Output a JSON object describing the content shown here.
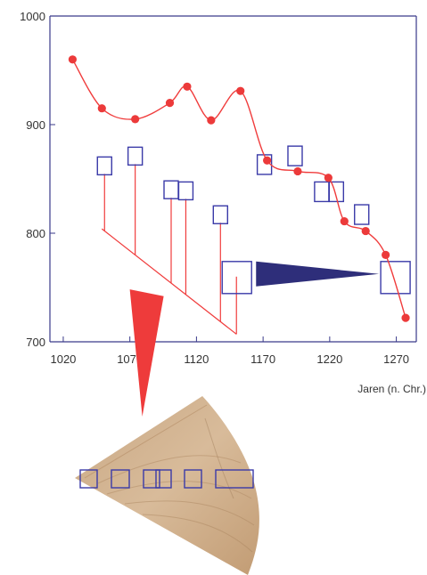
{
  "chart_data": {
    "type": "line",
    "title": "",
    "xlabel": "Jaren (n. Chr.)",
    "ylabel": "",
    "xlim": [
      1010,
      1285
    ],
    "ylim": [
      700,
      1000
    ],
    "xticks": [
      1020,
      1070,
      1120,
      1170,
      1220,
      1270
    ],
    "yticks": [
      700,
      800,
      900,
      1000
    ],
    "grid": false,
    "colors": {
      "series": "#f03c3c",
      "marker": "#ec3a3a",
      "box": "#3a3aa8",
      "wedge_red": "#ee3b3b",
      "wedge_blue": "#2e2e7a"
    },
    "series": [
      {
        "x": [
          1027,
          1049,
          1074,
          1100,
          1113,
          1131,
          1153,
          1173,
          1196,
          1219,
          1231,
          1247,
          1262,
          1277
        ],
        "y": [
          960,
          915,
          905,
          920,
          935,
          904,
          931,
          867,
          857,
          851,
          811,
          802,
          780,
          722
        ]
      }
    ],
    "annotations": {
      "sample_boxes": [
        {
          "x": 1051,
          "y": 862
        },
        {
          "x": 1074,
          "y": 871
        },
        {
          "x": 1101,
          "y": 840
        },
        {
          "x": 1112,
          "y": 839
        },
        {
          "x": 1138,
          "y": 817
        }
      ],
      "matched_boxes": [
        {
          "x": 1171,
          "y": 864
        },
        {
          "x": 1194,
          "y": 872
        },
        {
          "x": 1214,
          "y": 839
        },
        {
          "x": 1225,
          "y": 839
        },
        {
          "x": 1244,
          "y": 818
        }
      ],
      "big_box_left": {
        "x": 1150,
        "y": 760
      },
      "big_box_right": {
        "x": 1269,
        "y": 760
      },
      "bracket_base": {
        "y1": 804,
        "y2": 707
      }
    }
  }
}
